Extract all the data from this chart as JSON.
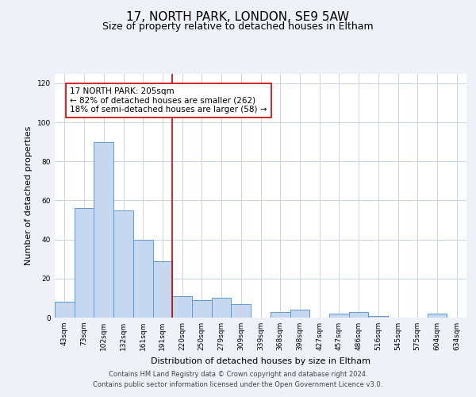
{
  "title": "17, NORTH PARK, LONDON, SE9 5AW",
  "subtitle": "Size of property relative to detached houses in Eltham",
  "xlabel": "Distribution of detached houses by size in Eltham",
  "ylabel": "Number of detached properties",
  "categories": [
    "43sqm",
    "73sqm",
    "102sqm",
    "132sqm",
    "161sqm",
    "191sqm",
    "220sqm",
    "250sqm",
    "279sqm",
    "309sqm",
    "339sqm",
    "368sqm",
    "398sqm",
    "427sqm",
    "457sqm",
    "486sqm",
    "516sqm",
    "545sqm",
    "575sqm",
    "604sqm",
    "634sqm"
  ],
  "values": [
    8,
    56,
    90,
    55,
    40,
    29,
    11,
    9,
    10,
    7,
    0,
    3,
    4,
    0,
    2,
    3,
    1,
    0,
    0,
    2,
    0
  ],
  "bar_color": "#c5d8f0",
  "bar_edge_color": "#5b9bd5",
  "vline_x": 5.5,
  "vline_color": "#cc0000",
  "annotation_line1": "17 NORTH PARK: 205sqm",
  "annotation_line2": "← 82% of detached houses are smaller (262)",
  "annotation_line3": "18% of semi-detached houses are larger (58) →",
  "annotation_box_color": "white",
  "annotation_box_edge_color": "#cc0000",
  "ylim": [
    0,
    125
  ],
  "yticks": [
    0,
    20,
    40,
    60,
    80,
    100,
    120
  ],
  "background_color": "#eef2f8",
  "plot_background_color": "white",
  "grid_color": "#c8d4e8",
  "footer_line1": "Contains HM Land Registry data © Crown copyright and database right 2024.",
  "footer_line2": "Contains public sector information licensed under the Open Government Licence v3.0.",
  "title_fontsize": 11,
  "subtitle_fontsize": 9,
  "xlabel_fontsize": 8,
  "ylabel_fontsize": 8,
  "annotation_fontsize": 7.5,
  "tick_fontsize": 6.5,
  "footer_fontsize": 6
}
